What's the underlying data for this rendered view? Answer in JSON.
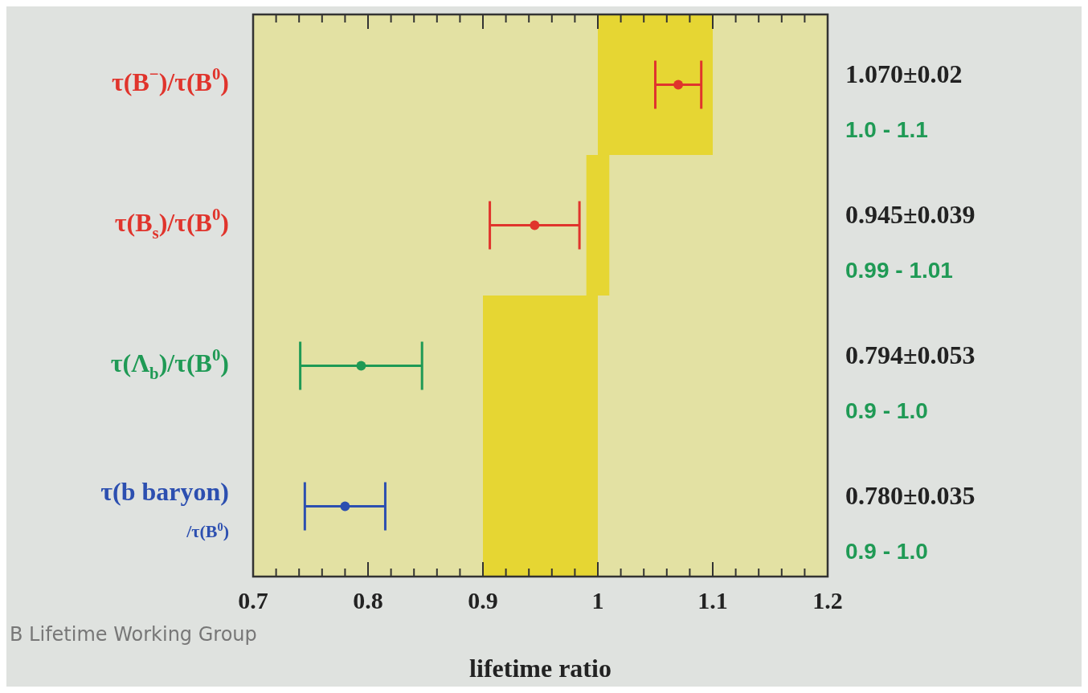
{
  "chart_data": {
    "type": "scatter",
    "orientation": "horizontal",
    "xlabel": "lifetime ratio",
    "categories": [
      "τ(B$^{−}$)/τ(B$^{0}$)",
      "τ(B$_{s}$)/τ(B$^{0}$)",
      "τ(Λ$_{b}$)/τ(B$^{0}$)",
      "τ(b baryon)/τ(B$^{0}$)"
    ],
    "xlim": [
      0.7,
      1.2
    ],
    "xticks": [
      0.7,
      {
        "value": 0.72,
        "label": null
      },
      {
        "value": 0.74,
        "label": null
      },
      {
        "value": 0.76,
        "label": null
      },
      {
        "value": 0.78,
        "label": null
      },
      0.8,
      {
        "value": 0.82,
        "label": null
      },
      {
        "value": 0.84,
        "label": null
      },
      {
        "value": 0.86,
        "label": null
      },
      {
        "value": 0.88,
        "label": null
      },
      0.9,
      {
        "value": 0.92,
        "label": null
      },
      {
        "value": 0.94,
        "label": null
      },
      {
        "value": 0.96,
        "label": null
      },
      {
        "value": 0.98,
        "label": null
      },
      1,
      {
        "value": 1.02,
        "label": null
      },
      {
        "value": 1.04,
        "label": null
      },
      {
        "value": 1.06,
        "label": null
      },
      {
        "value": 1.08,
        "label": null
      },
      1.1,
      {
        "value": 1.12,
        "label": null
      },
      {
        "value": 1.14,
        "label": null
      },
      {
        "value": 1.16,
        "label": null
      },
      {
        "value": 1.18,
        "label": null
      },
      1.2
    ],
    "series": [
      {
        "type": "bar",
        "color": "#e6d633",
        "base": [
          1.0,
          0.99,
          0.9,
          0.9
        ],
        "values": [
          0.1,
          0.02,
          0.1,
          0.1
        ]
      },
      {
        "colors": [
          "#e0342c",
          "#e0342c",
          "#1f9a55",
          "#2c4fb0"
        ],
        "values": [
          1.07,
          0.945,
          0.794,
          0.78
        ],
        "errors": [
          0.02,
          0.039,
          0.053,
          0.035
        ]
      }
    ],
    "marker": "circle",
    "annotations": [
      "1.070±0.02",
      "1.0 - 1.1",
      "0.945±0.039",
      "0.99 - 1.01",
      "0.794±0.053",
      "0.9 - 1.0",
      "0.780±0.035",
      "0.9 - 1.0",
      "B Lifetime Working Group"
    ]
  }
}
